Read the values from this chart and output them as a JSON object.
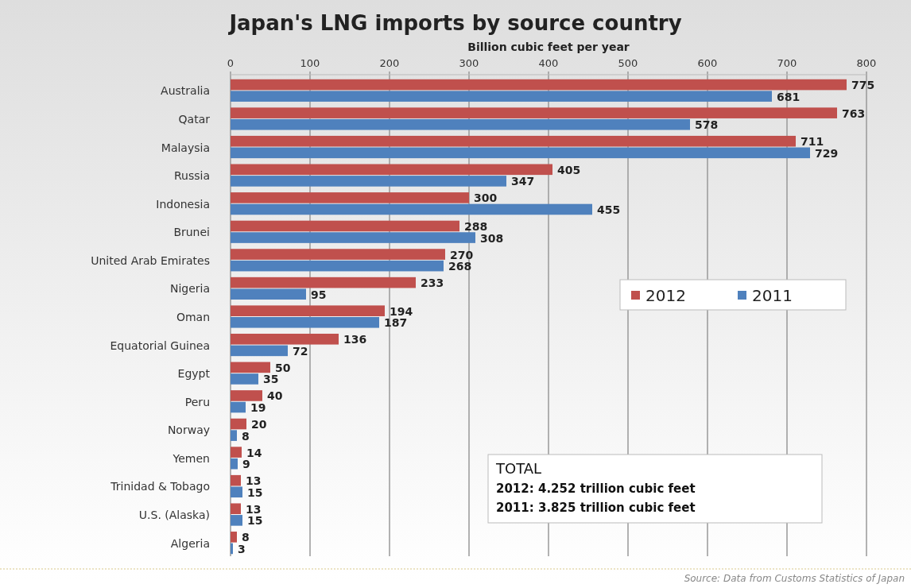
{
  "chart_data": {
    "type": "bar",
    "orientation": "horizontal",
    "title": "Japan's LNG imports by source country",
    "subtitle": "Billion cubic feet per year",
    "categories": [
      "Australia",
      "Qatar",
      "Malaysia",
      "Russia",
      "Indonesia",
      "Brunei",
      "United Arab Emirates",
      "Nigeria",
      "Oman",
      "Equatorial Guinea",
      "Egypt",
      "Peru",
      "Norway",
      "Yemen",
      "Trinidad & Tobago",
      "U.S. (Alaska)",
      "Algeria"
    ],
    "series": [
      {
        "name": "2012",
        "color": "#c0504d",
        "values": [
          775,
          763,
          711,
          405,
          300,
          288,
          270,
          233,
          194,
          136,
          50,
          40,
          20,
          14,
          13,
          13,
          8
        ]
      },
      {
        "name": "2011",
        "color": "#4f81bd",
        "values": [
          681,
          578,
          729,
          347,
          455,
          308,
          268,
          95,
          187,
          72,
          35,
          19,
          8,
          9,
          15,
          15,
          3
        ]
      }
    ],
    "xlim": [
      0,
      800
    ],
    "xticks": [
      0,
      100,
      200,
      300,
      400,
      500,
      600,
      700,
      800
    ],
    "grid": "x",
    "legend": "right",
    "data_labels": true,
    "annotations": [
      "TOTAL",
      "2012: 4.252 trillion cubic feet",
      "2011: 3.825 trillion cubic feet",
      "Source: Data from Customs Statistics of Japan"
    ]
  }
}
